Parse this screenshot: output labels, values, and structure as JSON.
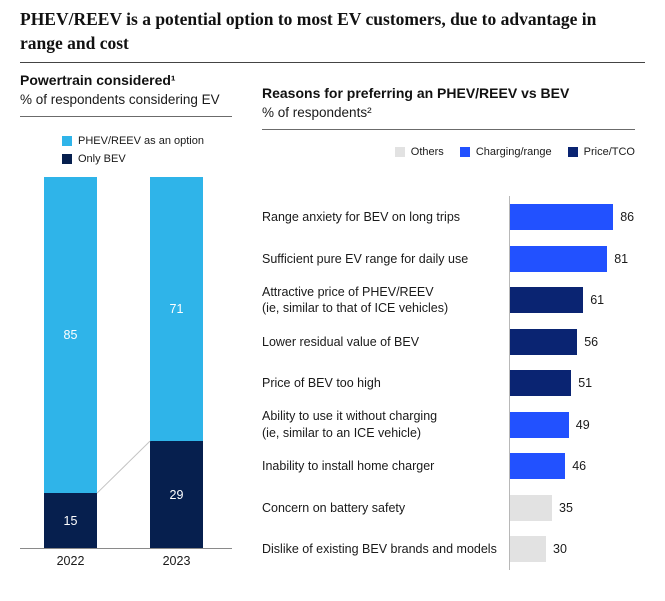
{
  "title": "PHEV/REEV is a potential option to most EV customers, due to advantage in range and cost",
  "chart_data": [
    {
      "type": "bar",
      "stacked": true,
      "title": "Powertrain considered¹",
      "subtitle": "% of respondents considering EV",
      "ylim": [
        0,
        100
      ],
      "grid": false,
      "legend_position": "top-left",
      "categories": [
        "2022",
        "2023"
      ],
      "series": [
        {
          "name": "PHEV/REEV as an option",
          "color": "#2FB4E9",
          "values": [
            85,
            71
          ]
        },
        {
          "name": "Only BEV",
          "color": "#061F4E",
          "values": [
            15,
            29
          ]
        }
      ]
    },
    {
      "type": "bar",
      "orientation": "horizontal",
      "title": "Reasons for preferring an PHEV/REEV vs BEV",
      "subtitle": "% of respondents²",
      "xlim": [
        0,
        100
      ],
      "grid": false,
      "legend_position": "top-right",
      "legend": [
        {
          "label": "Others",
          "color": "#E2E2E2"
        },
        {
          "label": "Charging/range",
          "color": "#2251FF"
        },
        {
          "label": "Price/TCO",
          "color": "#0A2472"
        }
      ],
      "rows": [
        {
          "label": "Range anxiety for BEV on long trips",
          "value": 86,
          "series": "Charging/range"
        },
        {
          "label": "Sufficient pure EV range for daily use",
          "value": 81,
          "series": "Charging/range"
        },
        {
          "label": "Attractive price of PHEV/REEV\n(ie, similar to that of  ICE vehicles)",
          "value": 61,
          "series": "Price/TCO"
        },
        {
          "label": "Lower residual value of BEV",
          "value": 56,
          "series": "Price/TCO"
        },
        {
          "label": "Price of BEV too high",
          "value": 51,
          "series": "Price/TCO"
        },
        {
          "label": "Ability to use it without charging\n(ie, similar to an ICE vehicle)",
          "value": 49,
          "series": "Charging/range"
        },
        {
          "label": "Inability to install home charger",
          "value": 46,
          "series": "Charging/range"
        },
        {
          "label": "Concern on battery safety",
          "value": 35,
          "series": "Others"
        },
        {
          "label": "Dislike of existing BEV brands and models",
          "value": 30,
          "series": "Others"
        }
      ]
    }
  ]
}
